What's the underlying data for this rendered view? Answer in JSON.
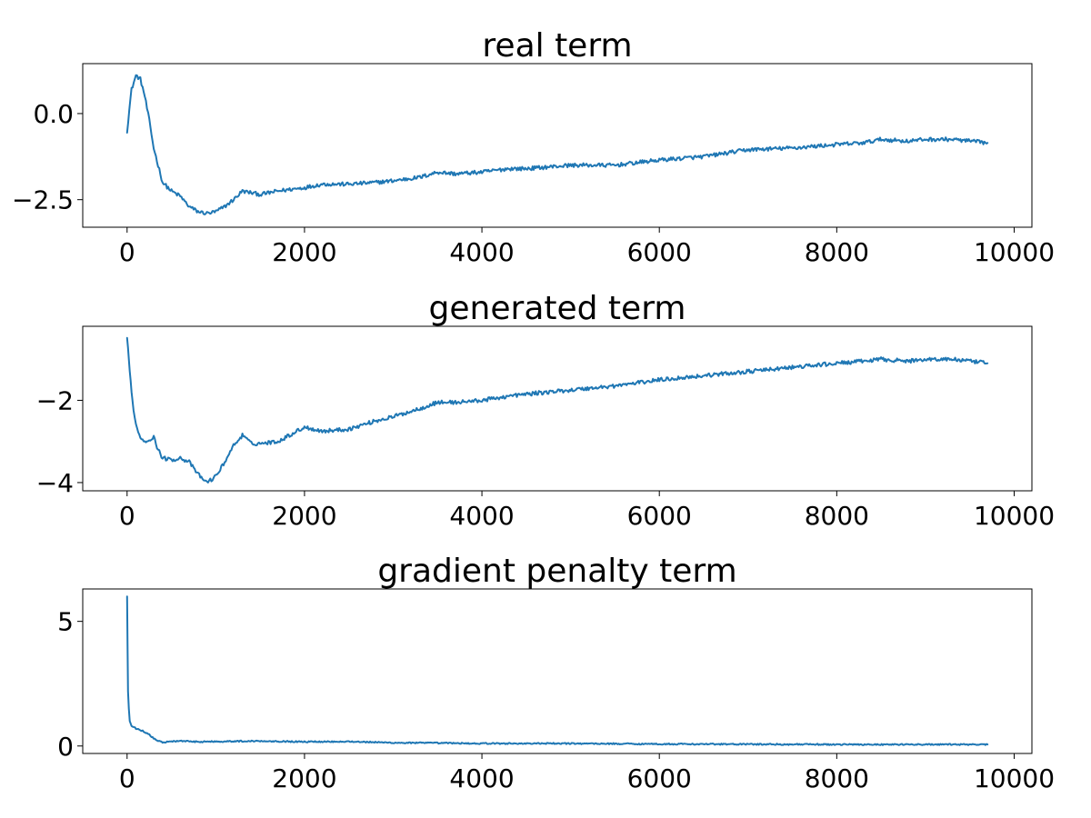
{
  "chart_data": [
    {
      "type": "line",
      "title": "real term",
      "xlabel": "",
      "ylabel": "",
      "xlim": [
        -500,
        10200
      ],
      "ylim": [
        -3.3,
        1.45
      ],
      "xticks": [
        0,
        2000,
        4000,
        6000,
        8000,
        10000
      ],
      "xtick_labels": [
        "0",
        "2000",
        "4000",
        "6000",
        "8000",
        "10000"
      ],
      "yticks": [
        0.0,
        -2.5
      ],
      "ytick_labels": [
        "0.0",
        "−2.5"
      ],
      "grid": false,
      "color": "#1f77b4",
      "series": [
        {
          "x": [
            0,
            50,
            100,
            150,
            200,
            250,
            300,
            400,
            500,
            600,
            700,
            800,
            900,
            1000,
            1100,
            1200,
            1300,
            1400,
            1500,
            1700,
            2000,
            2200,
            2500,
            2800,
            3000,
            3300,
            3500,
            3700,
            4000,
            4300,
            4500,
            5000,
            5500,
            6000,
            6500,
            7000,
            7500,
            8000,
            8300,
            8500,
            8800,
            9000,
            9300,
            9500,
            9700
          ],
          "y": [
            -0.5,
            0.7,
            1.1,
            1.0,
            0.5,
            -0.2,
            -1.0,
            -2.0,
            -2.25,
            -2.4,
            -2.7,
            -2.85,
            -2.9,
            -2.85,
            -2.7,
            -2.5,
            -2.25,
            -2.3,
            -2.35,
            -2.25,
            -2.15,
            -2.05,
            -2.05,
            -2.0,
            -1.95,
            -1.85,
            -1.7,
            -1.75,
            -1.7,
            -1.6,
            -1.6,
            -1.5,
            -1.5,
            -1.35,
            -1.25,
            -1.05,
            -1.0,
            -0.9,
            -0.85,
            -0.75,
            -0.8,
            -0.75,
            -0.75,
            -0.8,
            -0.85
          ]
        }
      ]
    },
    {
      "type": "line",
      "title": "generated term",
      "xlabel": "",
      "ylabel": "",
      "xlim": [
        -500,
        10200
      ],
      "ylim": [
        -4.2,
        -0.2
      ],
      "xticks": [
        0,
        2000,
        4000,
        6000,
        8000,
        10000
      ],
      "xtick_labels": [
        "0",
        "2000",
        "4000",
        "6000",
        "8000",
        "10000"
      ],
      "yticks": [
        -2,
        -4
      ],
      "ytick_labels": [
        "−2",
        "−4"
      ],
      "grid": false,
      "color": "#1f77b4",
      "series": [
        {
          "x": [
            0,
            30,
            60,
            100,
            150,
            200,
            300,
            350,
            400,
            500,
            600,
            700,
            800,
            900,
            1000,
            1100,
            1200,
            1300,
            1400,
            1500,
            1700,
            2000,
            2200,
            2500,
            2800,
            3000,
            3300,
            3500,
            3700,
            4000,
            4300,
            4500,
            5000,
            5500,
            6000,
            6500,
            7000,
            7500,
            8000,
            8300,
            8500,
            8800,
            9000,
            9300,
            9500,
            9700
          ],
          "y": [
            -0.5,
            -1.3,
            -2.0,
            -2.6,
            -2.9,
            -3.0,
            -2.9,
            -3.2,
            -3.4,
            -3.45,
            -3.4,
            -3.5,
            -3.8,
            -4.0,
            -3.85,
            -3.5,
            -3.1,
            -2.85,
            -3.05,
            -3.05,
            -3.0,
            -2.65,
            -2.75,
            -2.7,
            -2.5,
            -2.4,
            -2.2,
            -2.05,
            -2.05,
            -2.0,
            -1.9,
            -1.85,
            -1.75,
            -1.65,
            -1.5,
            -1.4,
            -1.3,
            -1.2,
            -1.1,
            -1.05,
            -1.0,
            -1.05,
            -1.0,
            -1.0,
            -1.05,
            -1.1
          ]
        }
      ]
    },
    {
      "type": "line",
      "title": "gradient penalty term",
      "xlabel": "",
      "ylabel": "",
      "xlim": [
        -500,
        10200
      ],
      "ylim": [
        -0.3,
        6.3
      ],
      "xticks": [
        0,
        2000,
        4000,
        6000,
        8000,
        10000
      ],
      "xtick_labels": [
        "0",
        "2000",
        "4000",
        "6000",
        "8000",
        "10000"
      ],
      "yticks": [
        5,
        0
      ],
      "ytick_labels": [
        "5",
        "0"
      ],
      "grid": false,
      "color": "#1f77b4",
      "series": [
        {
          "x": [
            0,
            5,
            10,
            20,
            30,
            50,
            80,
            100,
            150,
            200,
            250,
            300,
            350,
            400,
            500,
            600,
            800,
            1000,
            1500,
            2000,
            2500,
            2800,
            3000,
            3500,
            4000,
            5000,
            6000,
            7000,
            8000,
            9000,
            9700
          ],
          "y": [
            6.0,
            4.0,
            2.2,
            1.5,
            1.0,
            0.8,
            0.75,
            0.7,
            0.65,
            0.55,
            0.45,
            0.3,
            0.2,
            0.15,
            0.18,
            0.2,
            0.17,
            0.18,
            0.2,
            0.17,
            0.18,
            0.15,
            0.13,
            0.12,
            0.1,
            0.1,
            0.08,
            0.07,
            0.06,
            0.06,
            0.06
          ]
        }
      ]
    }
  ]
}
